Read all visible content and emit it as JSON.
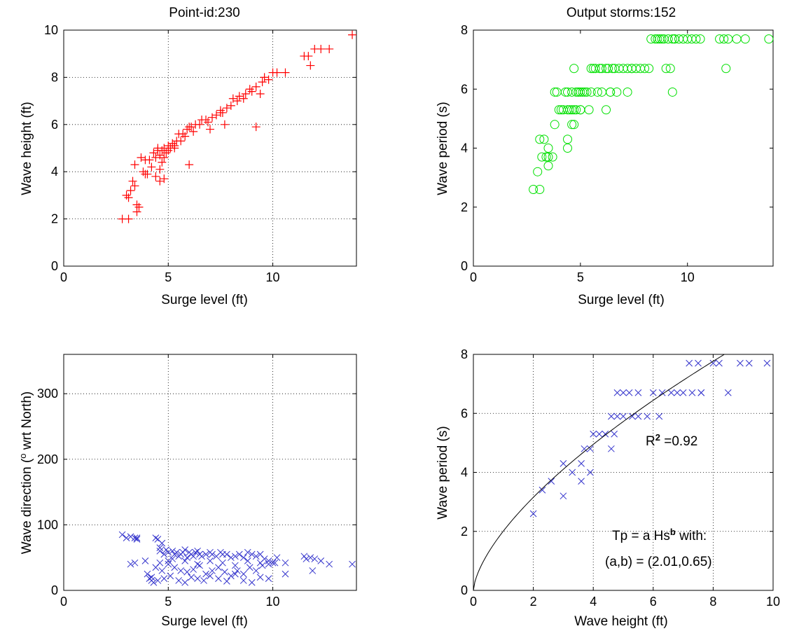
{
  "figure": {
    "fit_annotation": {
      "r2_prefix": "R",
      "r2_sup": "2",
      "r2_value": " =0.92",
      "eq_prefix": "Tp = a Hs",
      "eq_sup": "b",
      "eq_suffix": " with:",
      "params": "(a,b) = (2.01,0.65)"
    },
    "fit_curve": {
      "a": 2.01,
      "b": 0.65
    }
  },
  "chart_data": [
    {
      "type": "scatter",
      "title": "Point-id:230",
      "xlabel": "Surge level (ft)",
      "ylabel": "Wave height (ft)",
      "xlim": [
        0,
        14
      ],
      "ylim": [
        0,
        10
      ],
      "xticks": [
        0,
        5,
        10
      ],
      "yticks": [
        0,
        2,
        4,
        6,
        8,
        10
      ],
      "grid": true,
      "marker": "plus",
      "color": "#ff0000",
      "x": [
        2.8,
        3.1,
        3.0,
        3.2,
        3.3,
        3.1,
        3.4,
        3.5,
        3.5,
        3.6,
        3.4,
        3.7,
        3.8,
        3.9,
        4.0,
        3.9,
        4.1,
        4.2,
        4.3,
        4.4,
        4.4,
        4.5,
        4.5,
        4.6,
        4.6,
        4.7,
        4.7,
        4.8,
        4.8,
        4.9,
        5.0,
        5.0,
        5.1,
        5.2,
        5.3,
        5.3,
        5.4,
        5.5,
        5.6,
        5.7,
        5.8,
        5.9,
        6.0,
        6.1,
        6.2,
        6.3,
        6.5,
        6.6,
        6.8,
        6.9,
        7.0,
        7.1,
        7.3,
        7.5,
        7.6,
        7.7,
        7.8,
        8.0,
        8.1,
        8.3,
        8.4,
        8.6,
        8.7,
        8.9,
        9.0,
        9.2,
        9.4,
        9.5,
        9.6,
        9.8,
        10.0,
        10.2,
        10.6,
        11.5,
        11.7,
        11.8,
        12.0,
        12.3,
        12.7,
        13.8,
        9.2,
        6.0,
        7.5,
        4.8,
        4.6
      ],
      "y": [
        2.0,
        2.0,
        3.0,
        3.2,
        3.6,
        2.9,
        4.3,
        2.3,
        2.6,
        2.5,
        3.4,
        4.6,
        4.0,
        3.9,
        3.9,
        4.5,
        4.5,
        4.2,
        4.8,
        4.6,
        3.8,
        4.9,
        5.0,
        4.7,
        3.6,
        4.9,
        4.4,
        5.0,
        4.6,
        4.8,
        4.9,
        5.1,
        5.0,
        5.2,
        5.0,
        5.1,
        5.3,
        5.6,
        5.3,
        5.6,
        5.5,
        5.8,
        5.9,
        5.9,
        5.7,
        6.0,
        6.0,
        6.2,
        6.2,
        6.1,
        5.8,
        6.3,
        6.4,
        6.6,
        6.5,
        6.0,
        6.7,
        6.8,
        7.1,
        7.0,
        7.2,
        7.1,
        7.3,
        7.5,
        7.4,
        7.6,
        7.3,
        7.8,
        8.0,
        7.9,
        8.2,
        8.2,
        8.2,
        8.9,
        8.9,
        8.5,
        9.2,
        9.2,
        9.2,
        9.8,
        5.9,
        4.3,
        6.5,
        3.7,
        4.1
      ]
    },
    {
      "type": "scatter",
      "title": "Output storms:152",
      "xlabel": "Surge level (ft)",
      "ylabel": "Wave period (s)",
      "xlim": [
        0,
        14
      ],
      "ylim": [
        0,
        8
      ],
      "xticks": [
        0,
        5,
        10
      ],
      "yticks": [
        0,
        2,
        4,
        6,
        8
      ],
      "grid": false,
      "marker": "circle",
      "color": "#00e000",
      "x": [
        2.8,
        3.1,
        3.0,
        3.2,
        3.3,
        3.1,
        3.4,
        3.5,
        3.5,
        3.5,
        3.8,
        3.8,
        3.9,
        4.0,
        4.1,
        4.2,
        4.3,
        4.4,
        4.4,
        4.4,
        4.5,
        4.6,
        4.6,
        4.7,
        4.7,
        4.8,
        4.9,
        5.0,
        5.0,
        5.1,
        5.3,
        5.4,
        5.5,
        5.7,
        5.9,
        6.0,
        6.2,
        6.3,
        6.5,
        6.6,
        6.8,
        7.0,
        7.2,
        7.4,
        7.6,
        7.8,
        8.0,
        8.2,
        8.3,
        8.5,
        8.7,
        8.9,
        9.1,
        9.3,
        9.4,
        4.7,
        4.8,
        4.9,
        5.2,
        5.5,
        5.6,
        5.8,
        6.0,
        6.2,
        6.4,
        6.7,
        7.2,
        7.4,
        8.6,
        8.8,
        9.0,
        9.2,
        9.4,
        9.6,
        9.8,
        10.0,
        10.2,
        10.4,
        10.6,
        11.5,
        11.7,
        11.9,
        12.3,
        12.7,
        13.8,
        4.4,
        4.6,
        9.3,
        11.8,
        6.4,
        5.0,
        3.7
      ],
      "y": [
        2.6,
        2.6,
        3.2,
        3.7,
        4.3,
        4.3,
        3.7,
        3.7,
        3.4,
        4.0,
        4.8,
        5.9,
        5.9,
        5.3,
        5.3,
        5.3,
        5.9,
        5.9,
        5.3,
        4.0,
        5.3,
        5.9,
        4.8,
        4.8,
        6.7,
        5.3,
        5.9,
        5.9,
        5.3,
        5.9,
        5.9,
        5.3,
        6.7,
        6.7,
        6.7,
        6.7,
        6.7,
        6.7,
        6.7,
        6.7,
        6.7,
        6.7,
        6.7,
        6.7,
        6.7,
        6.7,
        6.7,
        6.7,
        7.7,
        7.7,
        7.7,
        7.7,
        7.7,
        7.7,
        7.7,
        5.3,
        5.9,
        5.9,
        5.9,
        5.9,
        6.7,
        5.9,
        5.9,
        5.3,
        5.9,
        5.9,
        5.9,
        6.7,
        7.7,
        7.7,
        6.7,
        6.7,
        7.7,
        7.7,
        7.7,
        7.7,
        7.7,
        7.7,
        7.7,
        7.7,
        7.7,
        7.7,
        7.7,
        7.7,
        7.7,
        4.3,
        5.3,
        5.9,
        6.7,
        5.9,
        5.3,
        3.7
      ]
    },
    {
      "type": "scatter",
      "title": "",
      "xlabel": "Surge level (ft)",
      "ylabel_prefix": "Wave direction (",
      "ylabel_sup": "o",
      "ylabel_suffix": " wrt North)",
      "xlim": [
        0,
        14
      ],
      "ylim": [
        0,
        360
      ],
      "xticks": [
        0,
        5,
        10
      ],
      "yticks": [
        0,
        100,
        200,
        300
      ],
      "grid": true,
      "marker": "x",
      "color": "#3333cc",
      "x": [
        2.8,
        3.0,
        3.2,
        3.4,
        3.5,
        3.5,
        3.2,
        3.4,
        4.0,
        4.1,
        4.2,
        4.3,
        4.4,
        4.5,
        4.6,
        4.6,
        4.7,
        4.8,
        4.9,
        5.0,
        5.0,
        5.2,
        5.3,
        5.4,
        5.5,
        5.6,
        5.7,
        5.8,
        5.9,
        6.0,
        6.1,
        6.2,
        6.3,
        6.4,
        6.5,
        6.6,
        6.8,
        7.0,
        7.1,
        7.3,
        7.5,
        7.6,
        7.8,
        8.0,
        8.2,
        8.4,
        8.6,
        8.8,
        9.0,
        9.2,
        9.4,
        9.6,
        9.8,
        10.0,
        10.2,
        10.6,
        11.5,
        11.8,
        12.0,
        12.3,
        12.7,
        13.8,
        4.4,
        4.7,
        5.0,
        5.3,
        5.6,
        5.9,
        6.2,
        6.5,
        6.8,
        7.1,
        7.4,
        7.7,
        8.0,
        8.3,
        8.6,
        8.9,
        9.2,
        9.5,
        9.8,
        10.1,
        10.6,
        11.6,
        11.9,
        4.2,
        4.5,
        4.8,
        5.1,
        5.5,
        5.8,
        6.1,
        6.4,
        6.7,
        7.0,
        7.4,
        7.8,
        8.2,
        8.6,
        9.0,
        9.4,
        9.8,
        3.9,
        4.6,
        5.2,
        5.8,
        6.4,
        7.0,
        7.6,
        8.2,
        8.8,
        9.4
      ],
      "y": [
        85,
        80,
        82,
        80,
        78,
        80,
        40,
        42,
        25,
        18,
        15,
        12,
        80,
        78,
        65,
        60,
        72,
        55,
        62,
        58,
        45,
        60,
        55,
        58,
        52,
        55,
        58,
        62,
        50,
        58,
        55,
        52,
        58,
        60,
        55,
        52,
        55,
        58,
        55,
        52,
        58,
        55,
        55,
        50,
        52,
        55,
        50,
        58,
        55,
        52,
        55,
        48,
        45,
        42,
        50,
        42,
        52,
        50,
        48,
        45,
        40,
        40,
        35,
        30,
        40,
        35,
        30,
        28,
        32,
        38,
        25,
        30,
        35,
        28,
        22,
        30,
        25,
        35,
        30,
        38,
        40,
        42,
        25,
        48,
        30,
        20,
        15,
        18,
        22,
        15,
        12,
        20,
        18,
        15,
        22,
        18,
        14,
        25,
        15,
        12,
        20,
        18,
        45,
        42,
        48,
        45,
        40,
        45,
        42,
        38,
        45,
        42
      ]
    },
    {
      "type": "scatter",
      "title": "",
      "xlabel": "Wave height (ft)",
      "ylabel": "Wave period (s)",
      "xlim": [
        0,
        10
      ],
      "ylim": [
        0,
        8
      ],
      "xticks": [
        0,
        2,
        4,
        6,
        8,
        10
      ],
      "yticks": [
        0,
        2,
        4,
        6,
        8
      ],
      "grid": true,
      "marker": "x",
      "color": "#3333cc",
      "x": [
        2.0,
        2.3,
        2.6,
        3.0,
        3.0,
        3.3,
        3.6,
        3.6,
        3.7,
        3.9,
        3.9,
        4.0,
        4.2,
        4.4,
        4.6,
        4.6,
        4.7,
        4.8,
        5.0,
        5.0,
        5.2,
        5.3,
        5.5,
        5.8,
        6.0,
        6.3,
        6.6,
        7.0,
        7.3,
        7.6,
        7.2,
        7.5,
        8.0,
        8.2,
        8.5,
        8.9,
        9.2,
        9.8,
        4.8,
        5.5,
        6.2,
        6.8,
        7.6
      ],
      "y": [
        2.6,
        3.4,
        3.7,
        3.2,
        4.3,
        4.0,
        3.7,
        4.3,
        4.8,
        4.8,
        4.0,
        5.3,
        5.3,
        5.3,
        4.8,
        5.9,
        5.3,
        5.9,
        5.9,
        6.7,
        6.7,
        5.9,
        5.9,
        5.9,
        6.7,
        6.7,
        6.7,
        6.7,
        6.7,
        6.7,
        7.7,
        7.7,
        7.7,
        7.7,
        6.7,
        7.7,
        7.7,
        7.7,
        6.7,
        6.7,
        5.9,
        6.7,
        6.7
      ]
    }
  ]
}
